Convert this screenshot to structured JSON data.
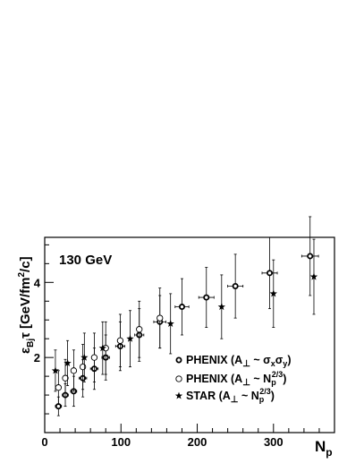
{
  "chart_data": {
    "type": "scatter",
    "annotation": "130 GeV",
    "xlabel_main": "N",
    "xlabel_sub": "p",
    "ylabel_parts": {
      "eps": "ε",
      "sub": "Bj",
      "mid": "τ [GeV/fm",
      "sup": "2",
      "end": "/c]"
    },
    "xlim": [
      0,
      380
    ],
    "ylim": [
      0,
      5.2
    ],
    "x_ticks": [
      0,
      100,
      200,
      300
    ],
    "y_ticks": [
      2,
      4
    ],
    "grid": false,
    "legend_position": "lower-right",
    "series": [
      {
        "name_parts": {
          "main": "PHENIX (A",
          "perp": "⊥",
          "rest": " ~ σ",
          "s1": "x",
          "mid": "σ",
          "s2": "y",
          "close": ")"
        },
        "marker": "circle-bold",
        "points": [
          {
            "x": 18,
            "y": 0.7,
            "err": 0.25,
            "xerr": 4
          },
          {
            "x": 27,
            "y": 1.0,
            "err": 0.3,
            "xerr": 4
          },
          {
            "x": 38,
            "y": 1.1,
            "err": 0.4,
            "xerr": 4
          },
          {
            "x": 50,
            "y": 1.45,
            "err": 0.5,
            "xerr": 5
          },
          {
            "x": 65,
            "y": 1.7,
            "err": 0.55,
            "xerr": 5
          },
          {
            "x": 80,
            "y": 2.0,
            "err": 0.6,
            "xerr": 5
          },
          {
            "x": 99,
            "y": 2.3,
            "err": 0.65,
            "xerr": 6
          },
          {
            "x": 124,
            "y": 2.6,
            "err": 0.7,
            "xerr": 6
          },
          {
            "x": 151,
            "y": 2.95,
            "err": 0.7,
            "xerr": 8
          },
          {
            "x": 180,
            "y": 3.35,
            "err": 0.75,
            "xerr": 9
          },
          {
            "x": 212,
            "y": 3.6,
            "err": 0.8,
            "xerr": 10
          },
          {
            "x": 250,
            "y": 3.9,
            "err": 0.85,
            "xerr": 10
          },
          {
            "x": 295,
            "y": 4.25,
            "err": 0.95,
            "xerr": 10
          },
          {
            "x": 348,
            "y": 4.7,
            "err": 1.05,
            "xerr": 11
          }
        ]
      },
      {
        "name_parts": {
          "main": "PHENIX (A",
          "perp": "⊥",
          "rest": " ~ N",
          "s1": "p",
          "sup": "2/3",
          "close": ")"
        },
        "marker": "circle-open",
        "points": [
          {
            "x": 18,
            "y": 1.2,
            "err": 0.45
          },
          {
            "x": 27,
            "y": 1.45,
            "err": 0.5
          },
          {
            "x": 38,
            "y": 1.65,
            "err": 0.55
          },
          {
            "x": 50,
            "y": 1.75,
            "err": 0.6
          },
          {
            "x": 65,
            "y": 2.0,
            "err": 0.65
          },
          {
            "x": 80,
            "y": 2.25,
            "err": 0.7
          },
          {
            "x": 99,
            "y": 2.45,
            "err": 0.7
          },
          {
            "x": 124,
            "y": 2.75,
            "err": 0.75
          },
          {
            "x": 151,
            "y": 3.05,
            "err": 0.8
          }
        ]
      },
      {
        "name_parts": {
          "main": "STAR (A",
          "perp": "⊥",
          "rest": " ~ N",
          "s1": "p",
          "sup": "2/3",
          "close": ")"
        },
        "marker": "star",
        "points": [
          {
            "x": 14,
            "y": 1.65,
            "err": 0.55
          },
          {
            "x": 30,
            "y": 1.85,
            "err": 0.6
          },
          {
            "x": 52,
            "y": 2.0,
            "err": 0.65
          },
          {
            "x": 76,
            "y": 2.25,
            "err": 0.7
          },
          {
            "x": 112,
            "y": 2.5,
            "err": 0.75
          },
          {
            "x": 165,
            "y": 2.9,
            "err": 0.8
          },
          {
            "x": 232,
            "y": 3.35,
            "err": 0.85
          },
          {
            "x": 300,
            "y": 3.7,
            "err": 0.9
          },
          {
            "x": 353,
            "y": 4.15,
            "err": 1.0
          }
        ]
      }
    ]
  }
}
